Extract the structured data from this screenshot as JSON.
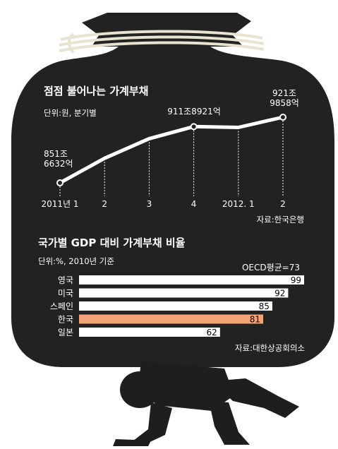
{
  "colors": {
    "bag": "#222222",
    "rope": "#e8e2d0",
    "text": "#ffffff",
    "highlight": "#f2a378",
    "bar": "#ffffff",
    "bar_text": "#000000",
    "person": "#1e1e1e"
  },
  "chart_data": [
    {
      "type": "line",
      "title": "점점 불어나는 가계부채",
      "subtitle": "단위:원, 분기별",
      "source": "자료:한국은행",
      "x": [
        "2011년 1",
        "2",
        "3",
        "4",
        "2012. 1",
        "2"
      ],
      "series": [
        {
          "values": [
            851.6632,
            878,
            899,
            911.8921,
            911,
            921.9858
          ]
        }
      ],
      "annotations": [
        {
          "index": 0,
          "lines": [
            "851조",
            "6632억"
          ]
        },
        {
          "index": 3,
          "lines": [
            "911조8921억"
          ]
        },
        {
          "index": 5,
          "lines": [
            "921조",
            "9858억"
          ]
        }
      ],
      "ylim": [
        840,
        930
      ],
      "grid": false
    },
    {
      "type": "bar",
      "title": "국가별 GDP 대비 가계부채 비율",
      "subtitle": "단위:%, 2010년 기준",
      "reference_label": "OECD평균=73",
      "source": "자료:대한상공회의소",
      "categories": [
        "영국",
        "미국",
        "스페인",
        "한국",
        "일본"
      ],
      "values": [
        99,
        92,
        85,
        81,
        62
      ],
      "highlight_category": "한국",
      "xlim": [
        0,
        99
      ],
      "grid": false
    }
  ]
}
